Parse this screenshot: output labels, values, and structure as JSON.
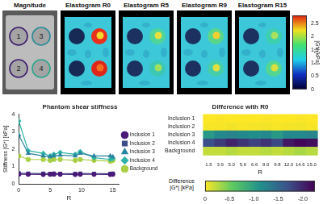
{
  "images": {
    "panels": [
      "Magnitude",
      "Elastogram R0",
      "Elastogram R5",
      "Elastogram R9",
      "Elastogram R15"
    ],
    "inclusion_labels": [
      "1",
      "2",
      "3",
      "4"
    ],
    "colorbar": {
      "label": "|G*| [kPa]",
      "range": [
        0,
        2.8
      ],
      "ticks": [
        0,
        0.5,
        1,
        1.5,
        2,
        2.5
      ]
    }
  },
  "chart_data": [
    {
      "type": "line",
      "title": "Phantom shear stiffness",
      "x_label": "R",
      "y_label": "Stiffness |G*| [kPa]",
      "x": [
        0,
        1.5,
        3.9,
        5.0,
        5.6,
        6.6,
        9.0,
        9.8,
        12.0,
        14.6,
        15.0
      ],
      "series": [
        {
          "name": "Inclusion 1",
          "color": "#4a1a78",
          "marker": "circle",
          "values": [
            0.55,
            0.55,
            0.54,
            0.55,
            0.56,
            0.55,
            0.54,
            0.55,
            0.55,
            0.54,
            0.55
          ]
        },
        {
          "name": "Inclusion 2",
          "color": "#3e4c8a",
          "marker": "square",
          "values": [
            0.62,
            0.6,
            0.6,
            0.58,
            0.6,
            0.59,
            0.58,
            0.6,
            0.59,
            0.58,
            0.6
          ]
        },
        {
          "name": "Inclusion 3",
          "color": "#2a84a0",
          "marker": "triangle",
          "values": [
            2.8,
            1.75,
            1.6,
            1.55,
            1.6,
            1.65,
            1.6,
            1.75,
            1.6,
            1.6,
            1.55
          ]
        },
        {
          "name": "Inclusion 4",
          "color": "#2fb3a6",
          "marker": "diamond",
          "values": [
            3.6,
            1.9,
            1.75,
            1.6,
            1.7,
            1.8,
            1.7,
            1.85,
            1.5,
            1.4,
            1.45
          ]
        },
        {
          "name": "Background",
          "color": "#a8cf45",
          "marker": "circle",
          "values": [
            1.6,
            1.4,
            1.4,
            1.35,
            1.4,
            1.4,
            1.35,
            1.4,
            1.35,
            1.3,
            1.35
          ]
        }
      ],
      "xlim": [
        0,
        16
      ],
      "xticks": [
        0,
        5,
        10,
        15
      ],
      "ylim": [
        0,
        4
      ],
      "yticks": [
        0,
        1,
        2,
        3,
        4
      ],
      "grid": false,
      "legend": "right"
    },
    {
      "type": "heatmap",
      "title": "Difference with R0",
      "x_label": "R",
      "categories": [
        "1.5",
        "3.9",
        "5.0",
        "5.6",
        "6.6",
        "9.0",
        "9.8",
        "12.0",
        "14.6",
        "15.0"
      ],
      "rows": [
        "Inclusion 1",
        "Inclusion 2",
        "Inclusion 3",
        "Inclusion 4",
        "Background"
      ],
      "cells": [
        [
          0,
          -0.01,
          0,
          0.01,
          0,
          -0.01,
          0,
          0,
          -0.01,
          0
        ],
        [
          -0.02,
          -0.02,
          -0.04,
          -0.02,
          -0.03,
          -0.04,
          -0.02,
          -0.03,
          -0.04,
          -0.02
        ],
        [
          -1.05,
          -1.2,
          -1.25,
          -1.2,
          -1.15,
          -1.2,
          -1.05,
          -1.2,
          -1.2,
          -1.25
        ],
        [
          -1.7,
          -1.85,
          -2.0,
          -1.9,
          -1.8,
          -1.9,
          -1.75,
          -2.1,
          -2.2,
          -2.15
        ],
        [
          -0.2,
          -0.2,
          -0.25,
          -0.2,
          -0.2,
          -0.25,
          -0.2,
          -0.25,
          -0.3,
          -0.25
        ]
      ],
      "colorbar": {
        "label": "Difference |G*| [kPa]",
        "range": [
          -2.25,
          0
        ],
        "ticks": [
          0,
          -0.5,
          {
            "value": -1,
            "label": "-1.0"
          },
          -1.5,
          {
            "value": -2,
            "label": "-2.0"
          }
        ]
      }
    }
  ]
}
